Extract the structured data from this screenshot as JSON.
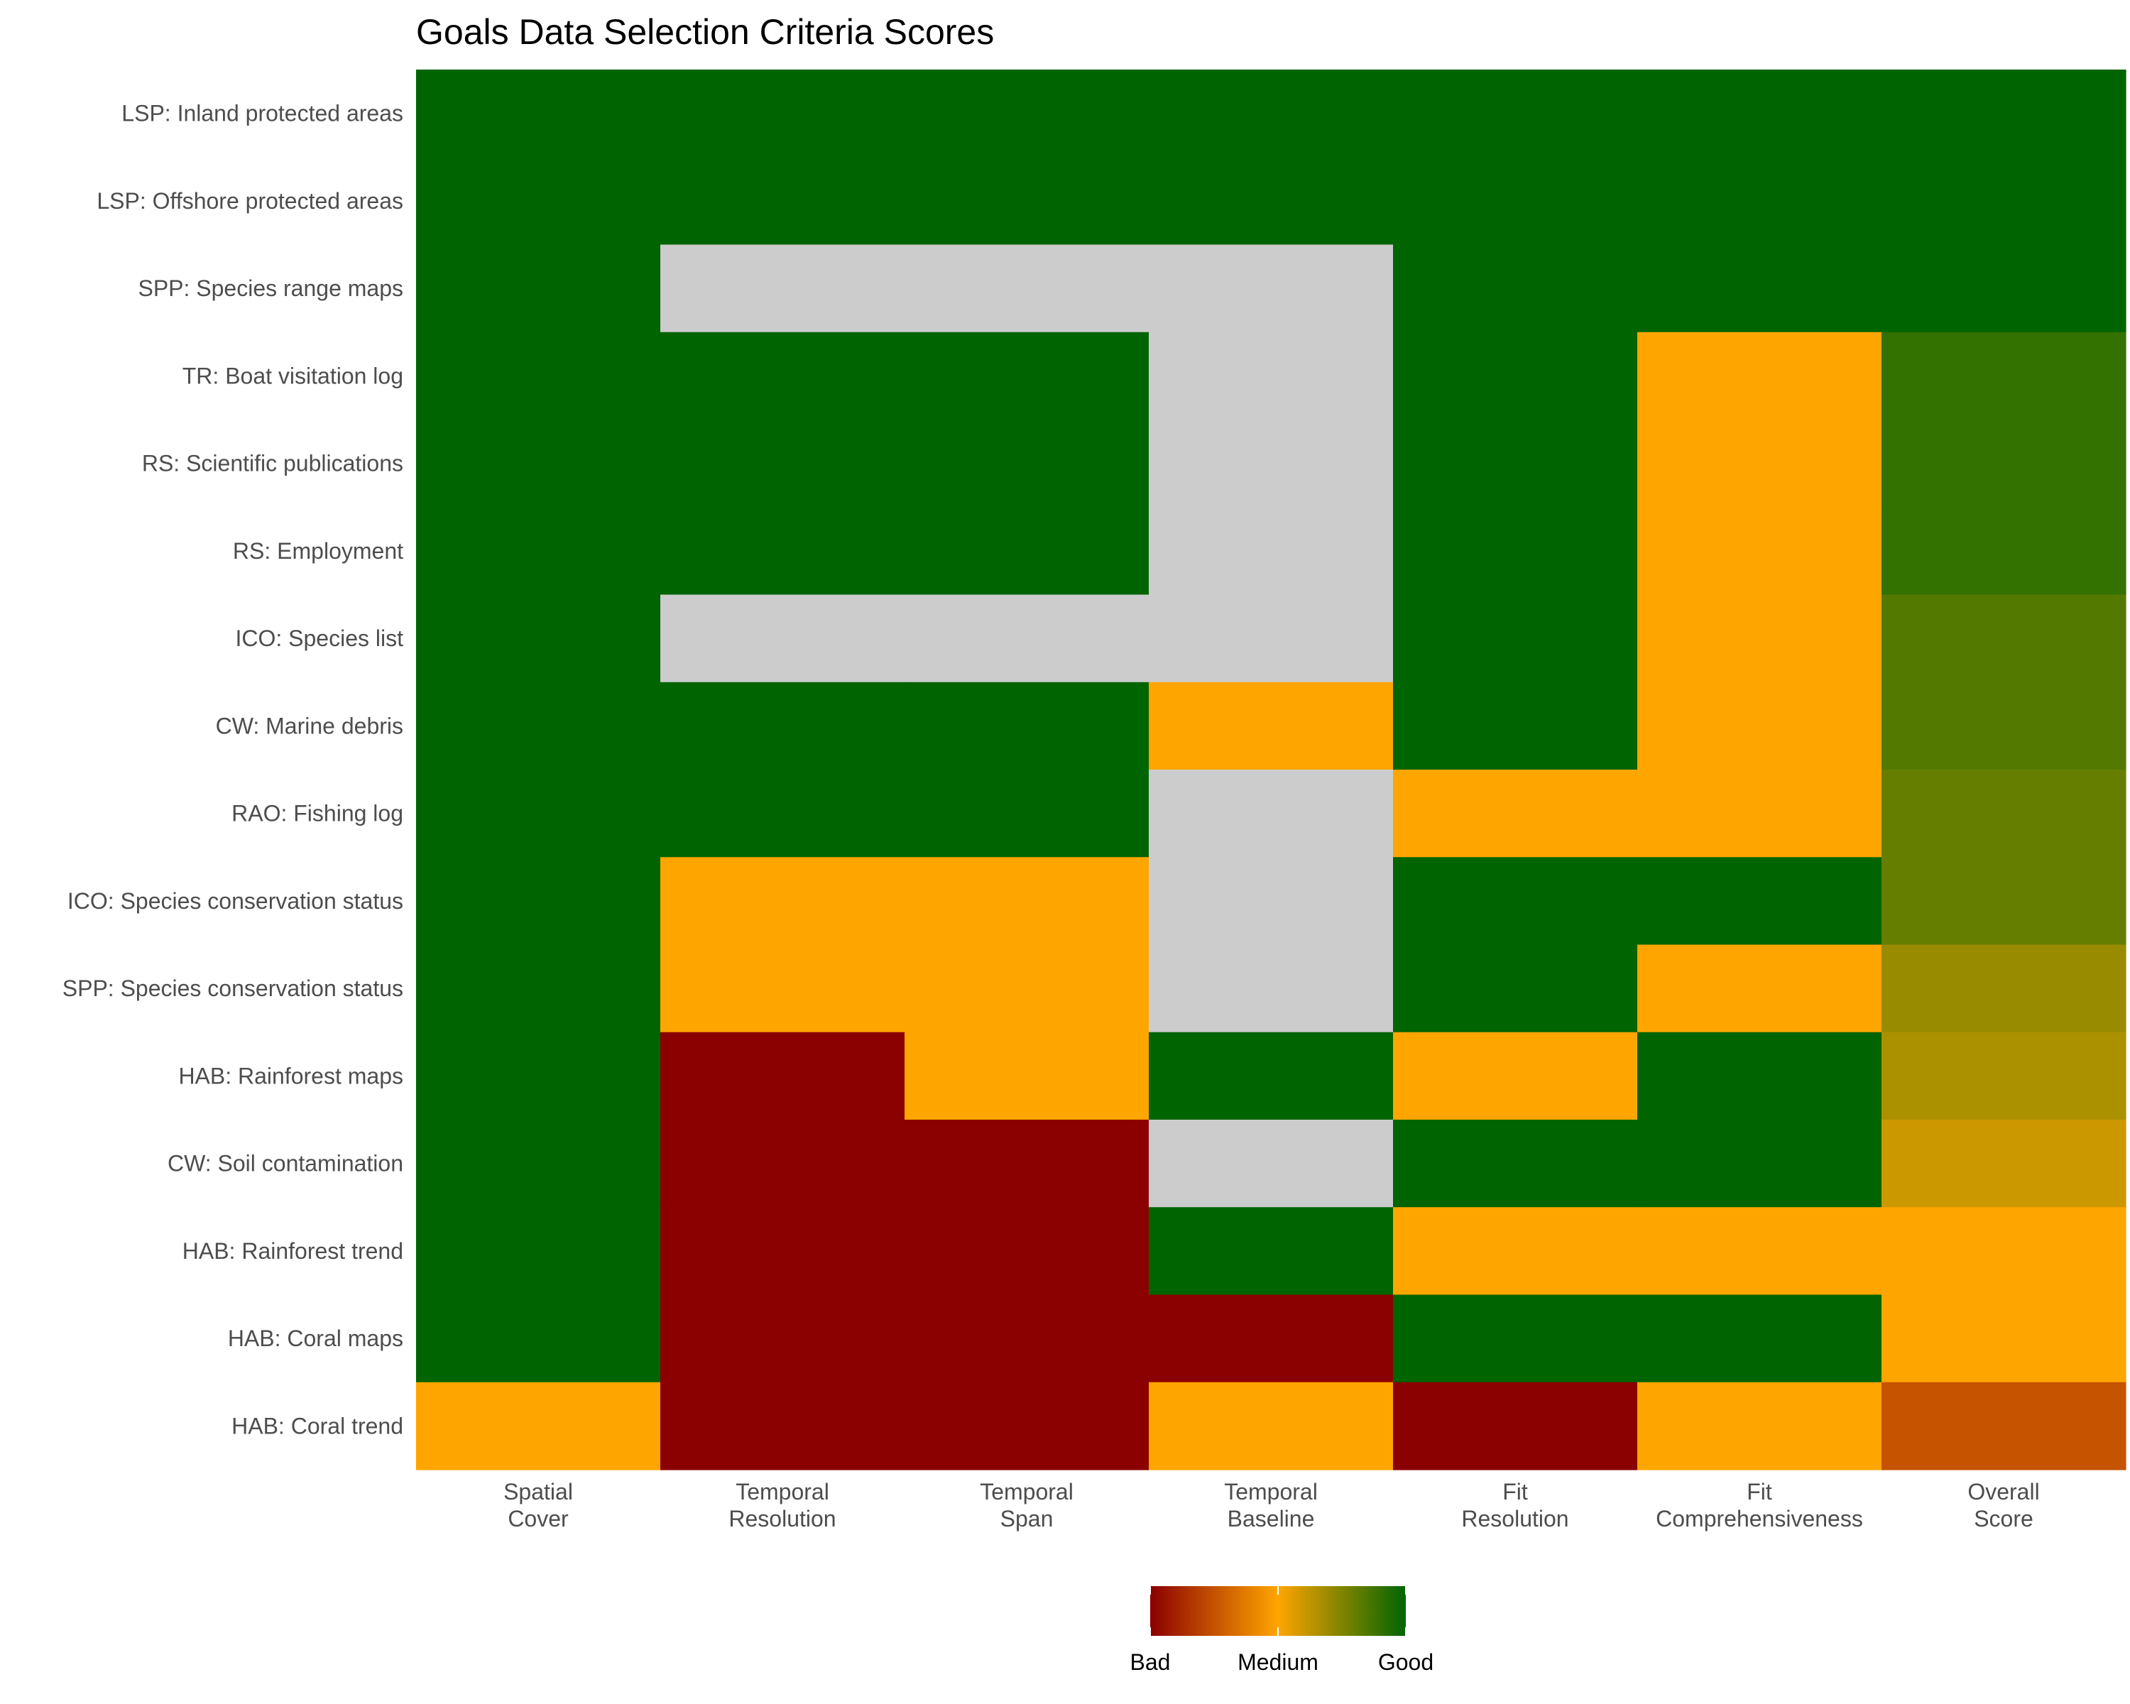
{
  "chart_data": {
    "type": "heatmap",
    "title": "Goals Data Selection Criteria Scores",
    "columns": [
      [
        "Spatial",
        "Cover"
      ],
      [
        "Temporal",
        "Resolution"
      ],
      [
        "Temporal",
        "Span"
      ],
      [
        "Temporal",
        "Baseline"
      ],
      [
        "Fit",
        "Resolution"
      ],
      [
        "Fit",
        "Comprehensiveness"
      ],
      [
        "Overall",
        "Score"
      ]
    ],
    "rows": [
      "LSP: Inland protected areas",
      "LSP: Offshore protected areas",
      "SPP: Species range maps",
      "TR: Boat visitation log",
      "RS: Scientific publications",
      "RS: Employment",
      "ICO: Species list",
      "CW: Marine debris",
      "RAO: Fishing log",
      "ICO: Species conservation status",
      "SPP: Species conservation status",
      "HAB: Rainforest maps",
      "CW: Soil contamination",
      "HAB: Rainforest trend",
      "HAB: Coral maps",
      "HAB: Coral trend"
    ],
    "scale": {
      "min": 1,
      "max": 3
    },
    "values": [
      [
        3,
        3,
        3,
        3,
        3,
        3,
        3.0
      ],
      [
        3,
        3,
        3,
        3,
        3,
        3,
        3.0
      ],
      [
        3,
        null,
        null,
        null,
        3,
        3,
        3.0
      ],
      [
        3,
        3,
        3,
        null,
        3,
        2,
        2.8
      ],
      [
        3,
        3,
        3,
        null,
        3,
        2,
        2.8
      ],
      [
        3,
        3,
        3,
        null,
        3,
        2,
        2.8
      ],
      [
        3,
        null,
        null,
        null,
        3,
        2,
        2.67
      ],
      [
        3,
        3,
        3,
        2,
        3,
        2,
        2.67
      ],
      [
        3,
        3,
        3,
        null,
        2,
        2,
        2.6
      ],
      [
        3,
        2,
        2,
        null,
        3,
        3,
        2.6
      ],
      [
        3,
        2,
        2,
        null,
        3,
        2,
        2.4
      ],
      [
        3,
        1,
        2,
        3,
        2,
        3,
        2.33
      ],
      [
        3,
        1,
        1,
        null,
        3,
        3,
        2.2
      ],
      [
        3,
        1,
        1,
        3,
        2,
        2,
        2.0
      ],
      [
        3,
        1,
        1,
        1,
        3,
        3,
        2.0
      ],
      [
        2,
        1,
        1,
        2,
        1,
        2,
        1.5
      ]
    ],
    "legend": {
      "position": "bottom",
      "labels": [
        "Bad",
        "Medium",
        "Good"
      ],
      "values": [
        1,
        2,
        3
      ]
    },
    "colors": {
      "bad": "#8b0000",
      "medium": "#ffa500",
      "good": "#006400",
      "missing": "#cccccc"
    }
  }
}
